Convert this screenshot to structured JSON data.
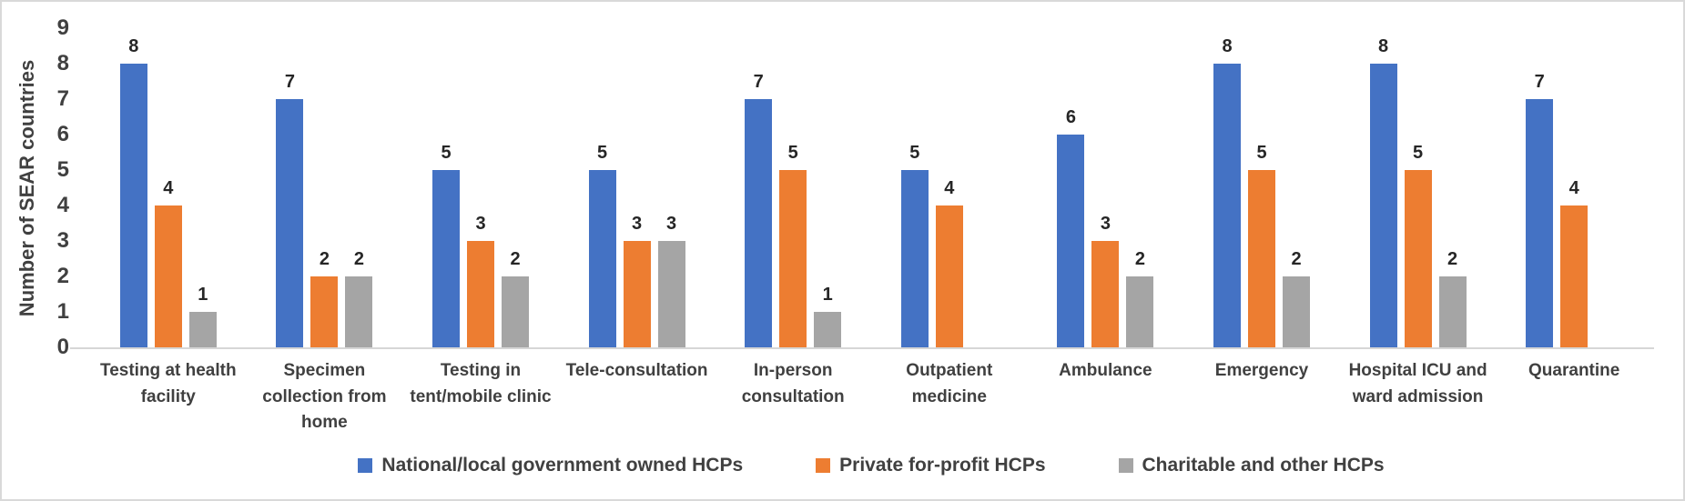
{
  "chart_data": {
    "type": "bar",
    "title": "",
    "xlabel": "",
    "ylabel": "Number of SEAR countries",
    "ylim": [
      0,
      9
    ],
    "ytick_step": 1,
    "grid": false,
    "legend_position": "bottom",
    "categories": [
      "Testing at health facility",
      "Specimen collection from home",
      "Testing in tent/mobile clinic",
      "Tele-consultation",
      "In-person consultation",
      "Outpatient medicine",
      "Ambulance",
      "Emergency",
      "Hospital ICU  and ward admission",
      "Quarantine"
    ],
    "series": [
      {
        "name": "National/local government owned HCPs",
        "color": "#4472C4",
        "values": [
          8,
          7,
          5,
          5,
          7,
          5,
          6,
          8,
          8,
          7
        ]
      },
      {
        "name": "Private for-profit HCPs",
        "color": "#ED7D31",
        "values": [
          4,
          2,
          3,
          3,
          5,
          4,
          3,
          5,
          5,
          4
        ]
      },
      {
        "name": "Charitable and other HCPs",
        "color": "#A5A5A5",
        "values": [
          1,
          2,
          2,
          3,
          1,
          null,
          2,
          2,
          2,
          null
        ]
      }
    ]
  },
  "colors": {
    "axis_text": "#404040",
    "data_label": "#262626",
    "axis_line": "#d6d6d6",
    "series_blue": "#4472C4",
    "series_orange": "#ED7D31",
    "series_gray": "#A5A5A5"
  }
}
